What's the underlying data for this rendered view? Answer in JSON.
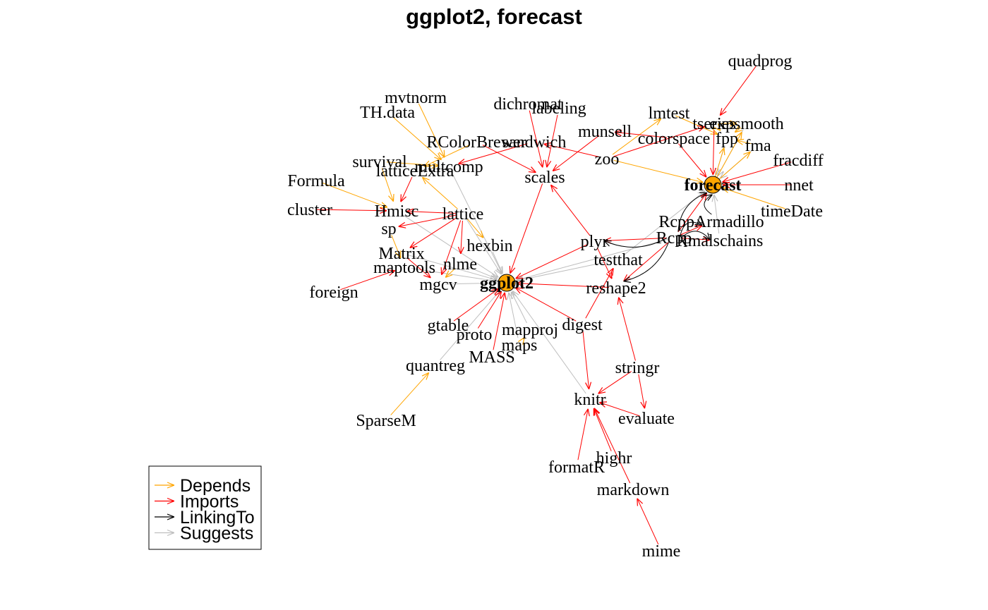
{
  "title": "ggplot2, forecast",
  "colors": {
    "Depends": "#FFA500",
    "Imports": "#FF0000",
    "LinkingTo": "#000000",
    "Suggests": "#BEBEBE",
    "root_fill": "#FFA500"
  },
  "legend": {
    "items": [
      {
        "type": "Depends",
        "label": "Depends"
      },
      {
        "type": "Imports",
        "label": "Imports"
      },
      {
        "type": "LinkingTo",
        "label": "LinkingTo"
      },
      {
        "type": "Suggests",
        "label": "Suggests"
      }
    ]
  },
  "nodes": [
    {
      "id": "ggplot2",
      "label": "ggplot2",
      "root": true
    },
    {
      "id": "forecast",
      "label": "forecast",
      "root": true
    },
    {
      "id": "quadprog",
      "label": "quadprog"
    },
    {
      "id": "mvtnorm",
      "label": "mvtnorm"
    },
    {
      "id": "TH.data",
      "label": "TH.data"
    },
    {
      "id": "dichromat",
      "label": "dichromat"
    },
    {
      "id": "labeling",
      "label": "labeling"
    },
    {
      "id": "lmtest",
      "label": "lmtest"
    },
    {
      "id": "munsell",
      "label": "munsell"
    },
    {
      "id": "tseries",
      "label": "tseries"
    },
    {
      "id": "expsmooth",
      "label": "expsmooth"
    },
    {
      "id": "colorspace",
      "label": "colorspace"
    },
    {
      "id": "fpp",
      "label": "fpp"
    },
    {
      "id": "fma",
      "label": "fma"
    },
    {
      "id": "RColorBrewer",
      "label": "RColorBrewer"
    },
    {
      "id": "sandwich",
      "label": "sandwich"
    },
    {
      "id": "fracdiff",
      "label": "fracdiff"
    },
    {
      "id": "survival",
      "label": "survival"
    },
    {
      "id": "multcomp",
      "label": "multcomp"
    },
    {
      "id": "zoo",
      "label": "zoo"
    },
    {
      "id": "latticeExtra",
      "label": "latticeExtra"
    },
    {
      "id": "scales",
      "label": "scales"
    },
    {
      "id": "nnet",
      "label": "nnet"
    },
    {
      "id": "Formula",
      "label": "Formula"
    },
    {
      "id": "cluster",
      "label": "cluster"
    },
    {
      "id": "Hmisc",
      "label": "Hmisc"
    },
    {
      "id": "lattice",
      "label": "lattice"
    },
    {
      "id": "timeDate",
      "label": "timeDate"
    },
    {
      "id": "RcppArmadillo",
      "label": "RcppArmadillo"
    },
    {
      "id": "sp",
      "label": "sp"
    },
    {
      "id": "Rcpp",
      "label": "Rcpp"
    },
    {
      "id": "Rmalschains",
      "label": "Rmalschains"
    },
    {
      "id": "plyr",
      "label": "plyr"
    },
    {
      "id": "hexbin",
      "label": "hexbin"
    },
    {
      "id": "Matrix",
      "label": "Matrix"
    },
    {
      "id": "testthat",
      "label": "testthat"
    },
    {
      "id": "maptools",
      "label": "maptools"
    },
    {
      "id": "nlme",
      "label": "nlme"
    },
    {
      "id": "mgcv",
      "label": "mgcv"
    },
    {
      "id": "reshape2",
      "label": "reshape2"
    },
    {
      "id": "foreign",
      "label": "foreign"
    },
    {
      "id": "digest",
      "label": "digest"
    },
    {
      "id": "gtable",
      "label": "gtable"
    },
    {
      "id": "proto",
      "label": "proto"
    },
    {
      "id": "mapproj",
      "label": "mapproj"
    },
    {
      "id": "maps",
      "label": "maps"
    },
    {
      "id": "MASS",
      "label": "MASS"
    },
    {
      "id": "stringr",
      "label": "stringr"
    },
    {
      "id": "quantreg",
      "label": "quantreg"
    },
    {
      "id": "knitr",
      "label": "knitr"
    },
    {
      "id": "evaluate",
      "label": "evaluate"
    },
    {
      "id": "SparseM",
      "label": "SparseM"
    },
    {
      "id": "highr",
      "label": "highr"
    },
    {
      "id": "formatR",
      "label": "formatR"
    },
    {
      "id": "markdown",
      "label": "markdown"
    },
    {
      "id": "mime",
      "label": "mime"
    }
  ],
  "edges": [
    {
      "from": "plyr",
      "to": "ggplot2",
      "type": "Imports"
    },
    {
      "from": "digest",
      "to": "ggplot2",
      "type": "Imports"
    },
    {
      "from": "gtable",
      "to": "ggplot2",
      "type": "Imports"
    },
    {
      "from": "reshape2",
      "to": "ggplot2",
      "type": "Imports"
    },
    {
      "from": "scales",
      "to": "ggplot2",
      "type": "Imports"
    },
    {
      "from": "proto",
      "to": "ggplot2",
      "type": "Imports"
    },
    {
      "from": "MASS",
      "to": "ggplot2",
      "type": "Imports"
    },
    {
      "from": "hexbin",
      "to": "ggplot2",
      "type": "Suggests"
    },
    {
      "from": "nlme",
      "to": "ggplot2",
      "type": "Suggests"
    },
    {
      "from": "mgcv",
      "to": "ggplot2",
      "type": "Suggests"
    },
    {
      "from": "maps",
      "to": "ggplot2",
      "type": "Suggests"
    },
    {
      "from": "mapproj",
      "to": "ggplot2",
      "type": "Suggests"
    },
    {
      "from": "quantreg",
      "to": "ggplot2",
      "type": "Suggests"
    },
    {
      "from": "lattice",
      "to": "ggplot2",
      "type": "Suggests"
    },
    {
      "from": "Hmisc",
      "to": "ggplot2",
      "type": "Suggests"
    },
    {
      "from": "testthat",
      "to": "ggplot2",
      "type": "Suggests"
    },
    {
      "from": "knitr",
      "to": "ggplot2",
      "type": "Suggests"
    },
    {
      "from": "multcomp",
      "to": "ggplot2",
      "type": "Suggests"
    },
    {
      "from": "maptools",
      "to": "ggplot2",
      "type": "Suggests"
    },
    {
      "from": "Matrix",
      "to": "ggplot2",
      "type": "Suggests"
    },
    {
      "from": "Rcpp",
      "to": "ggplot2",
      "type": "Suggests"
    },
    {
      "from": "RColorBrewer",
      "to": "scales",
      "type": "Imports"
    },
    {
      "from": "dichromat",
      "to": "scales",
      "type": "Imports"
    },
    {
      "from": "plyr",
      "to": "scales",
      "type": "Imports"
    },
    {
      "from": "munsell",
      "to": "scales",
      "type": "Imports"
    },
    {
      "from": "labeling",
      "to": "scales",
      "type": "Imports"
    },
    {
      "from": "colorspace",
      "to": "munsell",
      "type": "Imports"
    },
    {
      "from": "Rcpp",
      "to": "plyr",
      "type": "Imports"
    },
    {
      "from": "Rcpp",
      "to": "plyr",
      "type": "LinkingTo"
    },
    {
      "from": "plyr",
      "to": "reshape2",
      "type": "Imports"
    },
    {
      "from": "stringr",
      "to": "reshape2",
      "type": "Imports"
    },
    {
      "from": "Rcpp",
      "to": "reshape2",
      "type": "Imports"
    },
    {
      "from": "Rcpp",
      "to": "reshape2",
      "type": "LinkingTo"
    },
    {
      "from": "digest",
      "to": "testthat",
      "type": "Imports"
    },
    {
      "from": "evaluate",
      "to": "knitr",
      "type": "Imports"
    },
    {
      "from": "digest",
      "to": "knitr",
      "type": "Imports"
    },
    {
      "from": "formatR",
      "to": "knitr",
      "type": "Imports"
    },
    {
      "from": "highr",
      "to": "knitr",
      "type": "Imports"
    },
    {
      "from": "markdown",
      "to": "knitr",
      "type": "Imports"
    },
    {
      "from": "stringr",
      "to": "knitr",
      "type": "Imports"
    },
    {
      "from": "stringr",
      "to": "evaluate",
      "type": "Imports"
    },
    {
      "from": "mime",
      "to": "markdown",
      "type": "Imports"
    },
    {
      "from": "SparseM",
      "to": "quantreg",
      "type": "Depends"
    },
    {
      "from": "lattice",
      "to": "hexbin",
      "type": "Depends"
    },
    {
      "from": "lattice",
      "to": "nlme",
      "type": "Imports"
    },
    {
      "from": "lattice",
      "to": "Matrix",
      "type": "Imports"
    },
    {
      "from": "lattice",
      "to": "sp",
      "type": "Imports"
    },
    {
      "from": "lattice",
      "to": "mgcv",
      "type": "Imports"
    },
    {
      "from": "lattice",
      "to": "Hmisc",
      "type": "Imports"
    },
    {
      "from": "RColorBrewer",
      "to": "latticeExtra",
      "type": "Depends"
    },
    {
      "from": "lattice",
      "to": "latticeExtra",
      "type": "Depends"
    },
    {
      "from": "mvtnorm",
      "to": "multcomp",
      "type": "Depends"
    },
    {
      "from": "TH.data",
      "to": "multcomp",
      "type": "Depends"
    },
    {
      "from": "survival",
      "to": "multcomp",
      "type": "Depends"
    },
    {
      "from": "sandwich",
      "to": "multcomp",
      "type": "Imports"
    },
    {
      "from": "zoo",
      "to": "sandwich",
      "type": "Imports"
    },
    {
      "from": "Formula",
      "to": "Hmisc",
      "type": "Depends"
    },
    {
      "from": "survival",
      "to": "Hmisc",
      "type": "Depends"
    },
    {
      "from": "cluster",
      "to": "Hmisc",
      "type": "Imports"
    },
    {
      "from": "latticeExtra",
      "to": "Hmisc",
      "type": "Imports"
    },
    {
      "from": "sp",
      "to": "maptools",
      "type": "Depends"
    },
    {
      "from": "foreign",
      "to": "maptools",
      "type": "Imports"
    },
    {
      "from": "Matrix",
      "to": "mgcv",
      "type": "Imports"
    },
    {
      "from": "nlme",
      "to": "mgcv",
      "type": "Depends"
    },
    {
      "from": "maps",
      "to": "mapproj",
      "type": "Depends"
    },
    {
      "from": "zoo",
      "to": "lmtest",
      "type": "Depends"
    },
    {
      "from": "zoo",
      "to": "forecast",
      "type": "Depends"
    },
    {
      "from": "timeDate",
      "to": "forecast",
      "type": "Depends"
    },
    {
      "from": "colorspace",
      "to": "forecast",
      "type": "Imports"
    },
    {
      "from": "fracdiff",
      "to": "forecast",
      "type": "Imports"
    },
    {
      "from": "tseries",
      "to": "forecast",
      "type": "Imports"
    },
    {
      "from": "nnet",
      "to": "forecast",
      "type": "Imports"
    },
    {
      "from": "Rcpp",
      "to": "forecast",
      "type": "Imports"
    },
    {
      "from": "Rcpp",
      "to": "forecast",
      "type": "LinkingTo"
    },
    {
      "from": "RcppArmadillo",
      "to": "forecast",
      "type": "LinkingTo"
    },
    {
      "from": "Rmalschains",
      "to": "forecast",
      "type": "Suggests"
    },
    {
      "from": "fpp",
      "to": "forecast",
      "type": "Suggests"
    },
    {
      "from": "fma",
      "to": "forecast",
      "type": "Suggests"
    },
    {
      "from": "expsmooth",
      "to": "forecast",
      "type": "Suggests"
    },
    {
      "from": "testthat",
      "to": "forecast",
      "type": "Suggests"
    },
    {
      "from": "Rcpp",
      "to": "RcppArmadillo",
      "type": "Imports"
    },
    {
      "from": "Rcpp",
      "to": "RcppArmadillo",
      "type": "LinkingTo"
    },
    {
      "from": "Rcpp",
      "to": "Rmalschains",
      "type": "Imports"
    },
    {
      "from": "Rcpp",
      "to": "Rmalschains",
      "type": "LinkingTo"
    },
    {
      "from": "quadprog",
      "to": "tseries",
      "type": "Imports"
    },
    {
      "from": "zoo",
      "to": "tseries",
      "type": "Imports"
    },
    {
      "from": "forecast",
      "to": "fpp",
      "type": "Depends"
    },
    {
      "from": "fma",
      "to": "fpp",
      "type": "Depends"
    },
    {
      "from": "expsmooth",
      "to": "fpp",
      "type": "Depends"
    },
    {
      "from": "lmtest",
      "to": "fpp",
      "type": "Depends"
    },
    {
      "from": "tseries",
      "to": "fpp",
      "type": "Depends"
    },
    {
      "from": "forecast",
      "to": "fma",
      "type": "Depends"
    },
    {
      "from": "forecast",
      "to": "expsmooth",
      "type": "Depends"
    },
    {
      "from": "tseries",
      "to": "expsmooth",
      "type": "Depends"
    }
  ]
}
